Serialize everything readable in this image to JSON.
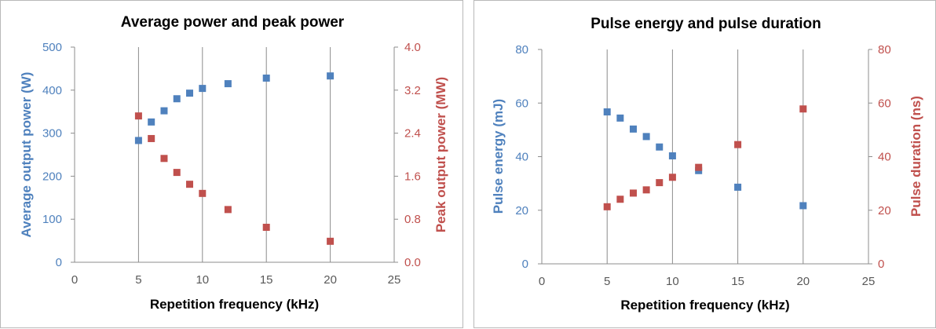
{
  "chart_data": [
    {
      "type": "scatter",
      "title": "Average power and peak power",
      "xlabel": "Repetition frequency (kHz)",
      "ylabel": "Average output  power (W)",
      "y2label": "Peak output  power (MW)",
      "xlim": [
        0,
        25
      ],
      "ylim": [
        0,
        500
      ],
      "y2lim": [
        0,
        4
      ],
      "xticks": [
        "0",
        "5",
        "10",
        "15",
        "20",
        "25"
      ],
      "yticks": [
        "0",
        "100",
        "200",
        "300",
        "400",
        "500"
      ],
      "y2ticks": [
        "0.0",
        "0.8",
        "1.6",
        "2.4",
        "3.2",
        "4.0"
      ],
      "grid": "x-axis gridlines",
      "series": [
        {
          "axis": "left",
          "color": "#4f81bd",
          "x": [
            5,
            6,
            7,
            8,
            9,
            10,
            12,
            15,
            20
          ],
          "y": [
            283,
            326,
            352,
            380,
            393,
            404,
            415,
            428,
            433
          ]
        },
        {
          "axis": "right",
          "color": "#c0504d",
          "x": [
            5,
            6,
            7,
            8,
            9,
            10,
            12,
            15,
            20
          ],
          "y": [
            2.72,
            2.3,
            1.93,
            1.67,
            1.45,
            1.28,
            0.98,
            0.65,
            0.39
          ]
        }
      ]
    },
    {
      "type": "scatter",
      "title": "Pulse energy and pulse duration",
      "xlabel": "Repetition frequency (kHz)",
      "ylabel": "Pulse energy (mJ)",
      "y2label": "Pulse duration (ns)",
      "xlim": [
        0,
        25
      ],
      "ylim": [
        0,
        80
      ],
      "y2lim": [
        0,
        80
      ],
      "xticks": [
        "0",
        "5",
        "10",
        "15",
        "20",
        "25"
      ],
      "yticks": [
        "0",
        "20",
        "40",
        "60",
        "80"
      ],
      "y2ticks": [
        "0",
        "20",
        "40",
        "60",
        "80"
      ],
      "grid": "x-axis gridlines",
      "series": [
        {
          "axis": "left",
          "color": "#4f81bd",
          "x": [
            5,
            6,
            7,
            8,
            9,
            10,
            12,
            15,
            20
          ],
          "y": [
            56.7,
            54.4,
            50.3,
            47.5,
            43.6,
            40.3,
            34.8,
            28.6,
            21.7
          ]
        },
        {
          "axis": "right",
          "color": "#c0504d",
          "x": [
            5,
            6,
            7,
            8,
            9,
            10,
            12,
            15,
            20
          ],
          "y": [
            21.3,
            24.1,
            26.4,
            27.6,
            30.3,
            32.3,
            36.0,
            44.5,
            57.8
          ]
        }
      ]
    }
  ]
}
